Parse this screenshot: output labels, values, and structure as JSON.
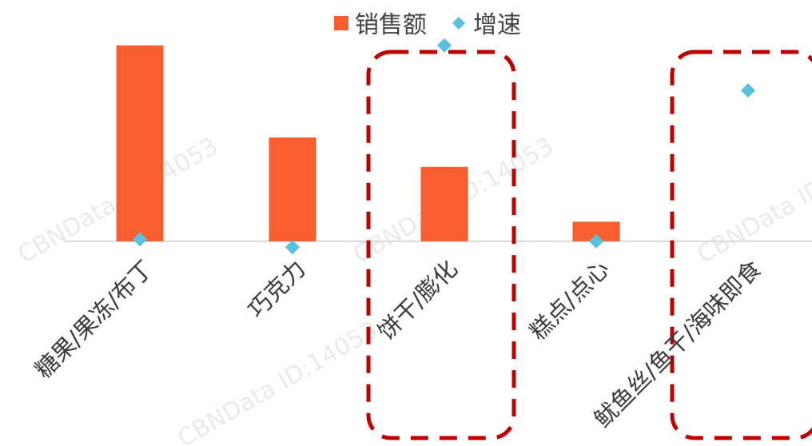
{
  "chart_data": {
    "type": "bar",
    "title": "",
    "xlabel": "",
    "ylabel": "",
    "categories": [
      "糖果/果冻/布丁",
      "巧克力",
      "饼干/膨化",
      "糕点/点心",
      "鱿鱼丝/鱼干/海味即食"
    ],
    "series": [
      {
        "name": "销售额",
        "type": "bar",
        "values": [
          100,
          53,
          38,
          10,
          0
        ]
      },
      {
        "name": "增速",
        "type": "scatter",
        "values": [
          1,
          -3,
          100,
          0,
          77
        ]
      }
    ],
    "ylim": [
      -40,
      115
    ],
    "grid": false,
    "axes_visible": false,
    "legend": "top-center",
    "highlighted_categories": [
      2,
      4
    ],
    "colors": {
      "bar": "#f85e2f",
      "point": "#5bc0de",
      "highlight": "#c00000",
      "baseline": "#d9d9d9"
    }
  },
  "watermark": "CBNData ID:14053"
}
